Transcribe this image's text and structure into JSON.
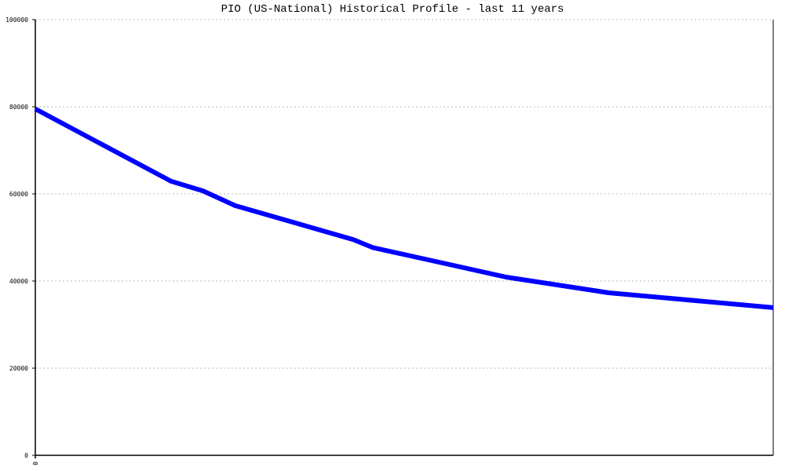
{
  "chart_data": {
    "type": "line",
    "title": "PIO (US-National) Historical Profile - last 11 years",
    "xlabel": "",
    "ylabel": "",
    "ylim": [
      0,
      100000
    ],
    "xlim": [
      0,
      10
    ],
    "x_tick_labels": [
      "0"
    ],
    "y_ticks": [
      0,
      20000,
      40000,
      60000,
      80000,
      100000
    ],
    "y_tick_labels": [
      "0",
      "20000",
      "40000",
      "60000",
      "80000",
      "100000"
    ],
    "grid": "horizontal dotted",
    "line_color": "#0000ff",
    "series": [
      {
        "x": [
          0,
          1.84,
          2.27,
          2.71,
          4.31,
          4.57,
          5.53,
          6.38,
          7.77,
          10
        ],
        "values": [
          79500,
          62900,
          60700,
          57300,
          49500,
          47700,
          44100,
          40900,
          37300,
          33900
        ]
      }
    ]
  }
}
